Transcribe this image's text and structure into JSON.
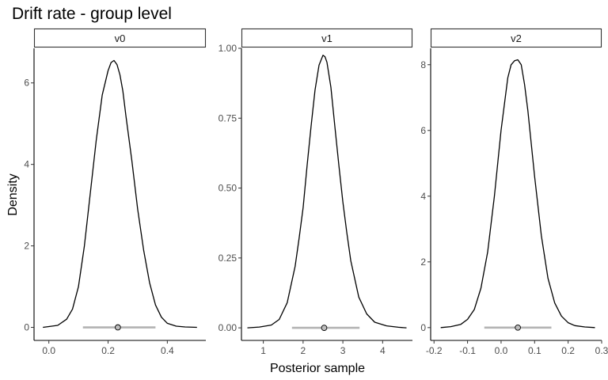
{
  "chart_data": {
    "type": "line",
    "title": "Drift rate - group level",
    "xlabel": "Posterior sample",
    "ylabel": "Density",
    "grid": false,
    "colors": {
      "line": "#000000",
      "interval": "#b3b3b3",
      "point_fill": "#bebebe",
      "strip_border": "#333333"
    },
    "panels": [
      {
        "name": "v0",
        "xlim": [
          -0.05,
          0.53
        ],
        "ylim": [
          -0.32,
          6.85
        ],
        "xticks": [
          0.0,
          0.2,
          0.4
        ],
        "xtick_labels": [
          "0.0",
          "0.2",
          "0.4"
        ],
        "yticks": [
          0,
          2,
          4,
          6
        ],
        "ytick_labels": [
          "0",
          "2",
          "4",
          "6"
        ],
        "interval": [
          0.115,
          0.36
        ],
        "point": 0.233,
        "density": {
          "x": [
            -0.02,
            0.0,
            0.03,
            0.06,
            0.08,
            0.1,
            0.12,
            0.14,
            0.16,
            0.18,
            0.2,
            0.21,
            0.22,
            0.23,
            0.24,
            0.25,
            0.26,
            0.28,
            0.3,
            0.32,
            0.34,
            0.36,
            0.38,
            0.4,
            0.43,
            0.46,
            0.5
          ],
          "y": [
            0.0,
            0.02,
            0.05,
            0.2,
            0.45,
            1.0,
            2.0,
            3.3,
            4.6,
            5.7,
            6.3,
            6.5,
            6.55,
            6.45,
            6.2,
            5.8,
            5.2,
            4.1,
            2.9,
            1.9,
            1.1,
            0.55,
            0.25,
            0.1,
            0.03,
            0.01,
            0.0
          ]
        }
      },
      {
        "name": "v1",
        "xlim": [
          0.45,
          4.75
        ],
        "ylim": [
          -0.045,
          1.0
        ],
        "xticks": [
          1,
          2,
          3,
          4
        ],
        "xtick_labels": [
          "1",
          "2",
          "3",
          "4"
        ],
        "yticks": [
          0.0,
          0.25,
          0.5,
          0.75,
          1.0
        ],
        "ytick_labels": [
          "0.00",
          "0.25",
          "0.50",
          "0.75",
          "1.00"
        ],
        "interval": [
          1.72,
          3.42
        ],
        "point": 2.53,
        "density": {
          "x": [
            0.6,
            0.9,
            1.2,
            1.4,
            1.6,
            1.8,
            1.9,
            2.0,
            2.1,
            2.2,
            2.3,
            2.4,
            2.5,
            2.55,
            2.6,
            2.7,
            2.8,
            2.9,
            3.0,
            3.1,
            3.2,
            3.4,
            3.6,
            3.8,
            4.1,
            4.4,
            4.6
          ],
          "y": [
            0.0,
            0.003,
            0.01,
            0.03,
            0.09,
            0.22,
            0.32,
            0.43,
            0.58,
            0.72,
            0.85,
            0.94,
            0.975,
            0.97,
            0.95,
            0.86,
            0.72,
            0.58,
            0.45,
            0.34,
            0.24,
            0.11,
            0.05,
            0.02,
            0.007,
            0.002,
            0.0
          ]
        }
      },
      {
        "name": "v2",
        "xlim": [
          -0.21,
          0.3
        ],
        "ylim": [
          -0.39,
          8.5
        ],
        "xticks": [
          -0.2,
          -0.1,
          0.0,
          0.1,
          0.2,
          0.3
        ],
        "xtick_labels": [
          "-0.2",
          "-0.1",
          "0.0",
          "0.1",
          "0.2",
          "0.3"
        ],
        "yticks": [
          0,
          2,
          4,
          6,
          8
        ],
        "ytick_labels": [
          "0",
          "2",
          "4",
          "6",
          "8"
        ],
        "interval": [
          -0.05,
          0.15
        ],
        "point": 0.05,
        "density": {
          "x": [
            -0.18,
            -0.15,
            -0.12,
            -0.1,
            -0.08,
            -0.06,
            -0.04,
            -0.02,
            0.0,
            0.02,
            0.03,
            0.04,
            0.05,
            0.06,
            0.07,
            0.08,
            0.1,
            0.12,
            0.14,
            0.16,
            0.18,
            0.2,
            0.22,
            0.25,
            0.28
          ],
          "y": [
            0.0,
            0.03,
            0.1,
            0.25,
            0.55,
            1.2,
            2.3,
            4.0,
            6.0,
            7.6,
            8.0,
            8.12,
            8.15,
            8.0,
            7.4,
            6.6,
            4.6,
            2.8,
            1.5,
            0.75,
            0.35,
            0.15,
            0.06,
            0.02,
            0.0
          ]
        }
      }
    ]
  }
}
